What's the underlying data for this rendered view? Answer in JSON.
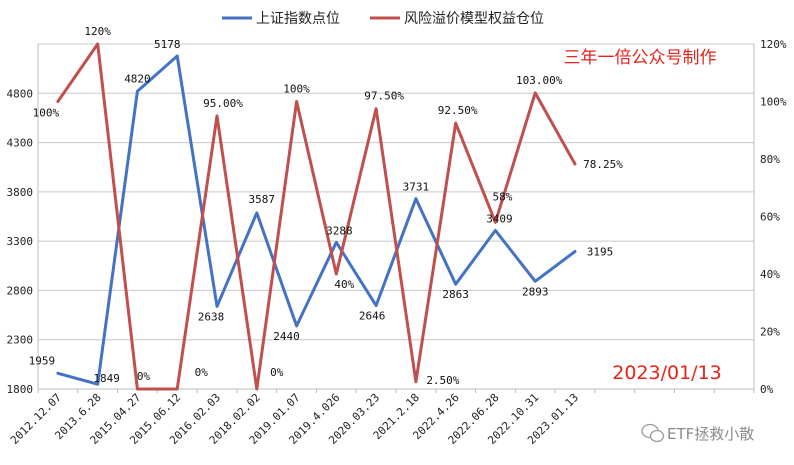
{
  "chart_data": {
    "type": "line",
    "categories": [
      "2012.12.07",
      "2013.6.28",
      "2015.04.27",
      "2015.06.12",
      "2016.02.03",
      "2018.02.02",
      "2019.01.07",
      "2019.4.026",
      "2020.03.23",
      "2021.2.18",
      "2022.4.26",
      "2022.06.28",
      "2022.10.31",
      "2023.01.13"
    ],
    "series": [
      {
        "name": "上证指数点位",
        "axis": "left",
        "color": "#4472c4",
        "values": [
          1959,
          1849,
          4820,
          5178,
          2638,
          3587,
          2440,
          3288,
          2646,
          3731,
          2863,
          3409,
          2893,
          3195
        ],
        "labels": [
          "1959",
          "1849",
          "4820",
          "5178",
          "2638",
          "3587",
          "2440",
          "3288",
          "2646",
          "3731",
          "2863",
          "3409",
          "2893",
          "3195"
        ]
      },
      {
        "name": "风险溢价模型权益仓位",
        "axis": "right",
        "color": "#c0504d",
        "values": [
          100,
          120,
          0,
          0,
          95,
          0,
          100,
          40,
          97.5,
          2.5,
          92.5,
          58,
          103,
          78.25
        ],
        "labels": [
          "100%",
          "120%",
          "0%",
          "0%",
          "95.00%",
          "0%",
          "100%",
          "40%",
          "97.50%",
          "2.50%",
          "92.50%",
          "58%",
          "103.00%",
          "78.25%"
        ]
      }
    ],
    "y_left": {
      "min": 1800,
      "max": 5300,
      "ticks": [
        "1800",
        "2300",
        "2800",
        "3300",
        "3800",
        "4300",
        "4800"
      ]
    },
    "y_right": {
      "min": 0,
      "max": 120,
      "ticks": [
        "0%",
        "20%",
        "40%",
        "60%",
        "80%",
        "100%",
        "120%"
      ]
    },
    "grid": true,
    "legend_position": "top"
  },
  "annotations": {
    "brand": "三年一倍公众号制作",
    "date": "2023/01/13",
    "watermark": "ETF拯救小散"
  }
}
